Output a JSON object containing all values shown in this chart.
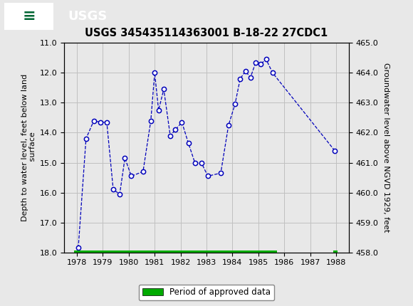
{
  "title": "USGS 345435114363001 B-18-22 27CDC1",
  "ylabel_left": "Depth to water level, feet below land\n surface",
  "ylabel_right": "Groundwater level above NGVD 1929, feet",
  "ylim_left": [
    11.0,
    18.0
  ],
  "ylim_right": [
    465.0,
    458.0
  ],
  "xlim": [
    1977.5,
    1988.5
  ],
  "yticks_left": [
    11.0,
    12.0,
    13.0,
    14.0,
    15.0,
    16.0,
    17.0,
    18.0
  ],
  "yticks_right": [
    465.0,
    464.0,
    463.0,
    462.0,
    461.0,
    460.0,
    459.0,
    458.0
  ],
  "xticks": [
    1978,
    1979,
    1980,
    1981,
    1982,
    1983,
    1984,
    1985,
    1986,
    1987,
    1988
  ],
  "data_x": [
    1978.05,
    1978.35,
    1978.65,
    1978.9,
    1979.15,
    1979.4,
    1979.65,
    1979.85,
    1980.1,
    1980.55,
    1980.85,
    1981.0,
    1981.15,
    1981.35,
    1981.6,
    1981.8,
    1982.05,
    1982.3,
    1982.55,
    1982.8,
    1983.05,
    1983.55,
    1983.85,
    1984.1,
    1984.3,
    1984.5,
    1984.7,
    1984.9,
    1985.1,
    1985.3,
    1985.55,
    1987.95
  ],
  "data_y": [
    17.85,
    14.2,
    13.6,
    13.65,
    13.65,
    15.9,
    16.05,
    14.85,
    15.45,
    15.3,
    13.6,
    12.0,
    13.25,
    12.55,
    14.1,
    13.9,
    13.65,
    14.35,
    15.0,
    15.0,
    15.45,
    15.35,
    13.75,
    13.05,
    12.2,
    11.95,
    12.15,
    11.65,
    11.7,
    11.55,
    12.0,
    14.6
  ],
  "line_color": "#0000bb",
  "marker_color": "#0000bb",
  "marker_face": "white",
  "grid_color": "#c0c0c0",
  "bg_color": "#e8e8e8",
  "header_color": "#006633",
  "header_text_color": "white",
  "approved_bar_x_start": 1977.88,
  "approved_bar_x_end": 1985.72,
  "approved_bar_x_start2": 1987.88,
  "approved_bar_x_end2": 1988.05,
  "approved_bar_y": 18.0,
  "approved_color": "#00aa00",
  "legend_label": "Period of approved data"
}
